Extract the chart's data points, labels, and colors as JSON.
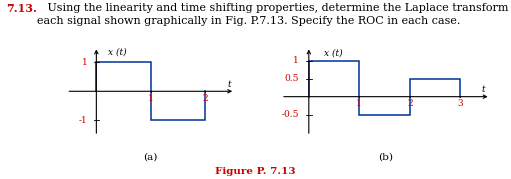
{
  "title_prefix": "7.13.",
  "title_body": "   Using the linearity and time shifting properties, determine the Laplace transform of\neach signal shown graphically in Fig. P.7.13. Specify the ROC in each case.",
  "title_fontsize": 8.0,
  "figure_caption": "Figure P. 7.13",
  "graph_a_label": "(a)",
  "graph_b_label": "(b)",
  "axis_label_x": "t",
  "axis_label_y": "x (t)",
  "graph_a": {
    "segments": [
      {
        "x": [
          0,
          0,
          1,
          1,
          2,
          2
        ],
        "y": [
          0,
          1,
          1,
          -1,
          -1,
          0
        ]
      }
    ],
    "yticks": [
      1,
      -1
    ],
    "ytick_labels": [
      "1",
      "-1"
    ],
    "xticks": [
      1,
      2
    ],
    "xtick_labels": [
      "1",
      "2"
    ],
    "xlim": [
      -0.55,
      2.55
    ],
    "ylim": [
      -1.55,
      1.55
    ]
  },
  "graph_b": {
    "segments": [
      {
        "x": [
          0,
          0,
          1,
          1,
          2,
          2,
          3,
          3
        ],
        "y": [
          0,
          1,
          1,
          -0.5,
          -0.5,
          0.5,
          0.5,
          0
        ]
      }
    ],
    "yticks": [
      1,
      0.5,
      -0.5
    ],
    "ytick_labels": [
      "1",
      "0.5",
      "-0.5"
    ],
    "xticks": [
      1,
      2,
      3
    ],
    "xtick_labels": [
      "1",
      "2",
      "3"
    ],
    "xlim": [
      -0.55,
      3.6
    ],
    "ylim": [
      -1.1,
      1.4
    ]
  },
  "line_color": "#003399",
  "axis_color": "#000000",
  "tick_color": "#cc0000",
  "caption_color": "#cc0000",
  "title_num_color": "#cc0000",
  "title_text_color": "#000000",
  "background": "#ffffff"
}
